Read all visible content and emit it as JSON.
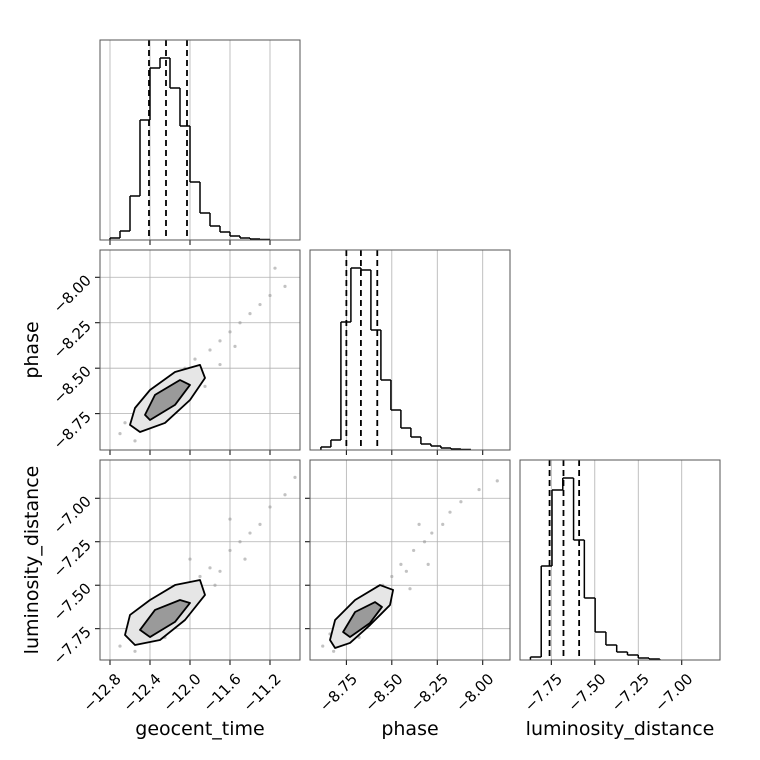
{
  "chart_data": {
    "type": "corner",
    "parameters": [
      {
        "name": "geocent_time",
        "lim": [
          -12.9,
          -10.9
        ],
        "ticks": [
          {
            "value": -12.8,
            "label": "−12.8"
          },
          {
            "value": -12.4,
            "label": "−12.4"
          },
          {
            "value": -12.0,
            "label": "−12.0"
          },
          {
            "value": -11.6,
            "label": "−11.6"
          },
          {
            "value": -11.2,
            "label": "−11.2"
          }
        ]
      },
      {
        "name": "phase",
        "lim": [
          -8.95,
          -7.85
        ],
        "ticks": [
          {
            "value": -8.75,
            "label": "−8.75"
          },
          {
            "value": -8.5,
            "label": "−8.50"
          },
          {
            "value": -8.25,
            "label": "−8.25"
          },
          {
            "value": -8.0,
            "label": "−8.00"
          }
        ]
      },
      {
        "name": "luminosity_distance",
        "lim": [
          -7.93,
          -6.78
        ],
        "ticks": [
          {
            "value": -7.75,
            "label": "−7.75"
          },
          {
            "value": -7.5,
            "label": "−7.50"
          },
          {
            "value": -7.25,
            "label": "−7.25"
          },
          {
            "value": -7.0,
            "label": "−7.00"
          }
        ]
      }
    ],
    "histograms": [
      {
        "bins": [
          -12.8,
          -12.7,
          -12.6,
          -12.5,
          -12.4,
          -12.3,
          -12.2,
          -12.1,
          -12.0,
          -11.9,
          -11.8,
          -11.7,
          -11.6,
          -11.5,
          -11.4,
          -11.3,
          -11.2
        ],
        "counts": [
          2,
          9,
          44,
          120,
          172,
          182,
          152,
          114,
          58,
          27,
          14,
          8,
          4,
          2,
          1,
          0.5
        ],
        "ylim": [
          0,
          200
        ],
        "quantiles": [
          -12.41,
          -12.24,
          -12.03
        ]
      },
      {
        "bins": [
          -8.89,
          -8.835,
          -8.78,
          -8.725,
          -8.67,
          -8.615,
          -8.56,
          -8.505,
          -8.45,
          -8.395,
          -8.34,
          -8.285,
          -8.23,
          -8.175,
          -8.12,
          -8.065
        ],
        "counts": [
          3,
          10,
          128,
          182,
          180,
          120,
          70,
          40,
          22,
          13,
          6,
          4,
          2,
          1,
          0.5
        ],
        "ylim": [
          0,
          200
        ],
        "quantiles": [
          -8.75,
          -8.67,
          -8.58
        ]
      },
      {
        "bins": [
          -7.87,
          -7.808,
          -7.746,
          -7.684,
          -7.622,
          -7.56,
          -7.498,
          -7.436,
          -7.374,
          -7.312,
          -7.25,
          -7.188,
          -7.126
        ],
        "counts": [
          3,
          94,
          170,
          182,
          120,
          62,
          28,
          15,
          8,
          5,
          2,
          1
        ],
        "ylim": [
          0,
          200
        ],
        "quantiles": [
          -7.76,
          -7.68,
          -7.59
        ]
      }
    ],
    "pairs": [
      {
        "x": 0,
        "y": 1,
        "points": [
          [
            -12.7,
            -8.86
          ],
          [
            -12.65,
            -8.8
          ],
          [
            -12.5,
            -8.78
          ],
          [
            -12.45,
            -8.7
          ],
          [
            -12.35,
            -8.72
          ],
          [
            -12.3,
            -8.6
          ],
          [
            -12.2,
            -8.65
          ],
          [
            -12.1,
            -8.55
          ],
          [
            -12.05,
            -8.5
          ],
          [
            -11.95,
            -8.45
          ],
          [
            -11.9,
            -8.52
          ],
          [
            -11.8,
            -8.4
          ],
          [
            -11.7,
            -8.35
          ],
          [
            -11.6,
            -8.3
          ],
          [
            -11.55,
            -8.38
          ],
          [
            -11.5,
            -8.25
          ],
          [
            -11.4,
            -8.2
          ],
          [
            -11.3,
            -8.15
          ],
          [
            -11.2,
            -8.1
          ],
          [
            -11.15,
            -7.95
          ],
          [
            -11.05,
            -8.05
          ],
          [
            -12.55,
            -8.9
          ],
          [
            -12.2,
            -8.75
          ],
          [
            -11.85,
            -8.6
          ],
          [
            -11.7,
            -8.48
          ]
        ],
        "contours": [
          [
            [
              -12.6,
              -8.812
            ],
            [
              -12.55,
              -8.719
            ],
            [
              -12.4,
              -8.62
            ],
            [
              -12.15,
              -8.521
            ],
            [
              -11.9,
              -8.482
            ],
            [
              -11.85,
              -8.554
            ],
            [
              -12.0,
              -8.675
            ],
            [
              -12.25,
              -8.801
            ],
            [
              -12.5,
              -8.851
            ]
          ],
          [
            [
              -12.45,
              -8.757
            ],
            [
              -12.35,
              -8.647
            ],
            [
              -12.1,
              -8.565
            ],
            [
              -12.0,
              -8.592
            ],
            [
              -12.15,
              -8.702
            ],
            [
              -12.4,
              -8.785
            ]
          ]
        ]
      },
      {
        "x": 0,
        "y": 2,
        "points": [
          [
            -12.7,
            -7.85
          ],
          [
            -12.6,
            -7.78
          ],
          [
            -12.5,
            -7.72
          ],
          [
            -12.4,
            -7.66
          ],
          [
            -12.3,
            -7.7
          ],
          [
            -12.2,
            -7.58
          ],
          [
            -12.1,
            -7.6
          ],
          [
            -12.0,
            -7.5
          ],
          [
            -11.9,
            -7.45
          ],
          [
            -11.8,
            -7.4
          ],
          [
            -11.7,
            -7.42
          ],
          [
            -11.6,
            -7.3
          ],
          [
            -11.5,
            -7.25
          ],
          [
            -11.4,
            -7.2
          ],
          [
            -11.3,
            -7.15
          ],
          [
            -11.2,
            -7.05
          ],
          [
            -11.05,
            -6.98
          ],
          [
            -10.95,
            -6.88
          ],
          [
            -12.55,
            -7.88
          ],
          [
            -12.25,
            -7.8
          ],
          [
            -11.95,
            -7.62
          ],
          [
            -11.75,
            -7.5
          ],
          [
            -11.45,
            -7.35
          ],
          [
            -11.6,
            -7.12
          ],
          [
            -12.0,
            -7.35
          ]
        ],
        "contours": [
          [
            [
              -12.65,
              -7.786
            ],
            [
              -12.6,
              -7.671
            ],
            [
              -12.4,
              -7.585
            ],
            [
              -12.15,
              -7.499
            ],
            [
              -11.9,
              -7.47
            ],
            [
              -11.85,
              -7.556
            ],
            [
              -12.05,
              -7.7
            ],
            [
              -12.3,
              -7.815
            ],
            [
              -12.55,
              -7.844
            ]
          ],
          [
            [
              -12.5,
              -7.757
            ],
            [
              -12.35,
              -7.642
            ],
            [
              -12.1,
              -7.585
            ],
            [
              -12.0,
              -7.602
            ],
            [
              -12.15,
              -7.711
            ],
            [
              -12.4,
              -7.798
            ]
          ]
        ]
      },
      {
        "x": 1,
        "y": 2,
        "points": [
          [
            -8.88,
            -7.85
          ],
          [
            -8.84,
            -7.78
          ],
          [
            -8.8,
            -7.72
          ],
          [
            -8.75,
            -7.66
          ],
          [
            -8.7,
            -7.7
          ],
          [
            -8.65,
            -7.58
          ],
          [
            -8.6,
            -7.6
          ],
          [
            -8.55,
            -7.5
          ],
          [
            -8.5,
            -7.45
          ],
          [
            -8.45,
            -7.38
          ],
          [
            -8.42,
            -7.42
          ],
          [
            -8.38,
            -7.3
          ],
          [
            -8.32,
            -7.25
          ],
          [
            -8.28,
            -7.2
          ],
          [
            -8.22,
            -7.15
          ],
          [
            -8.18,
            -7.08
          ],
          [
            -8.12,
            -7.02
          ],
          [
            -8.02,
            -6.95
          ],
          [
            -7.92,
            -6.9
          ],
          [
            -8.82,
            -7.88
          ],
          [
            -8.68,
            -7.8
          ],
          [
            -8.52,
            -7.62
          ],
          [
            -8.4,
            -7.52
          ],
          [
            -8.3,
            -7.38
          ],
          [
            -8.35,
            -7.15
          ]
        ],
        "contours": [
          [
            [
              -8.84,
              -7.815
            ],
            [
              -8.812,
              -7.7
            ],
            [
              -8.702,
              -7.585
            ],
            [
              -8.565,
              -7.499
            ],
            [
              -8.493,
              -7.527
            ],
            [
              -8.51,
              -7.614
            ],
            [
              -8.62,
              -7.729
            ],
            [
              -8.73,
              -7.832
            ],
            [
              -8.812,
              -7.861
            ]
          ],
          [
            [
              -8.768,
              -7.769
            ],
            [
              -8.702,
              -7.654
            ],
            [
              -8.592,
              -7.597
            ],
            [
              -8.554,
              -7.625
            ],
            [
              -8.62,
              -7.717
            ],
            [
              -8.73,
              -7.798
            ]
          ]
        ]
      }
    ],
    "grid": true,
    "line_color": "#000000",
    "point_color": "#999999",
    "contour_fills": [
      "#e6e6e6",
      "#9a9a9a"
    ]
  }
}
